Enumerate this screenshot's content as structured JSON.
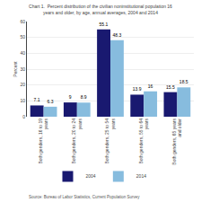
{
  "chart_data": {
    "type": "bar",
    "title": "Chart 1.  Percent distribution of the civilian noninstitutional population 16\nyears and older, by age, annual averages, 2004 and 2014",
    "ylabel": "Percent",
    "categories": [
      "Both genders, 16 to 19\nyears",
      "Both genders, 20 to 24\nyears",
      "Both genders, 25 to 54\nyears",
      "Both genders, 55 to 64\nyears",
      "Both genders, 65 years\nand older"
    ],
    "series": [
      {
        "name": "2004",
        "color": "#191970",
        "values": [
          7.1,
          9.0,
          55.1,
          13.9,
          15.5
        ]
      },
      {
        "name": "2014",
        "color": "#87BCDE",
        "values": [
          6.3,
          8.9,
          48.3,
          16.0,
          18.5
        ]
      }
    ],
    "ylim": [
      0,
      60
    ],
    "yticks": [
      0,
      10,
      20,
      30,
      40,
      50,
      60
    ],
    "grid": true,
    "legend": "bottom",
    "data_labels": true,
    "annotations": [
      "Source: Bureau of Labor Statistics, Current Population Survey"
    ]
  }
}
